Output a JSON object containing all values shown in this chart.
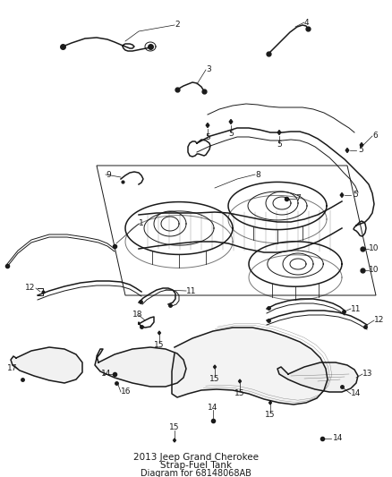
{
  "title": "2013 Jeep Grand Cherokee",
  "subtitle": "Strap-Fuel Tank",
  "part_number": "Diagram for 68148068AB",
  "bg_color": "#ffffff",
  "line_color": "#1a1a1a",
  "label_color": "#1a1a1a",
  "fig_width": 4.38,
  "fig_height": 5.33,
  "dpi": 100,
  "title_fontsize": 7.5,
  "label_fontsize": 6.5
}
